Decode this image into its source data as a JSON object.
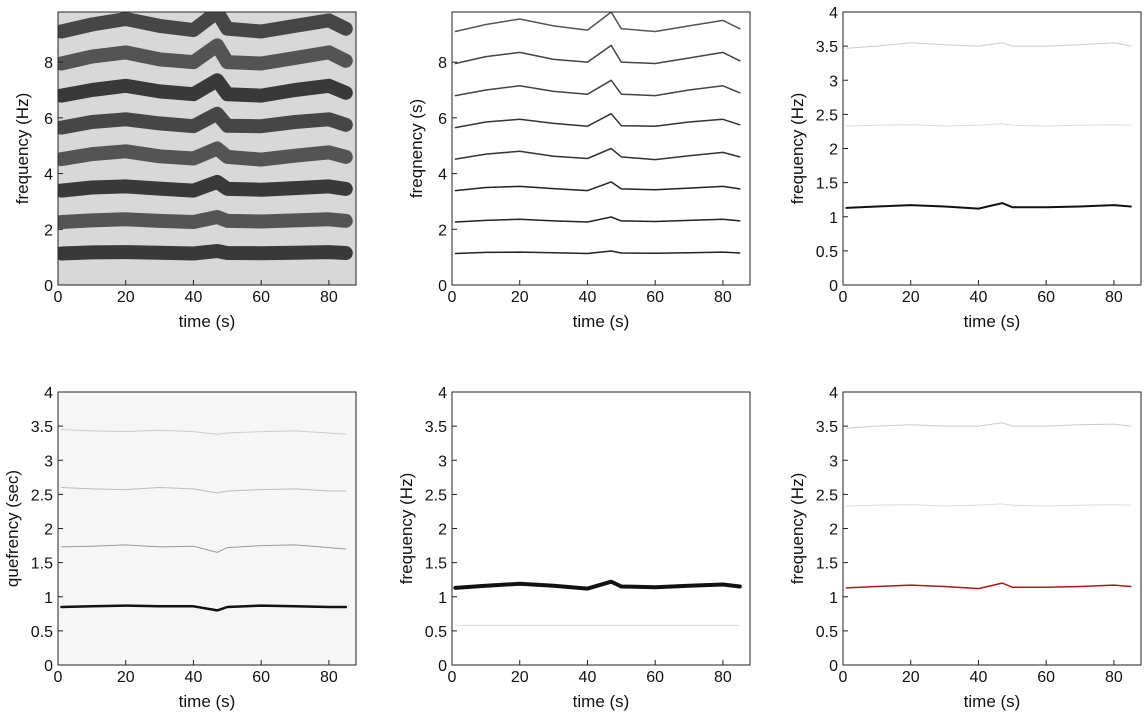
{
  "chart_data": [
    {
      "type": "line",
      "xlabel": "time (s)",
      "ylabel": "frequency (Hz)",
      "xlim": [
        0,
        88
      ],
      "ylim": [
        0,
        9.8
      ],
      "xticks": [
        0,
        20,
        40,
        60,
        80
      ],
      "yticks": [
        0,
        2,
        4,
        6,
        8
      ],
      "background": "#d8d8d8",
      "x": [
        1,
        10,
        20,
        30,
        40,
        47,
        50,
        60,
        70,
        80,
        85
      ],
      "series": [
        {
          "color": "#111",
          "line_width": 14,
          "values": [
            1.13,
            1.17,
            1.18,
            1.16,
            1.13,
            1.22,
            1.15,
            1.14,
            1.16,
            1.18,
            1.15
          ]
        },
        {
          "color": "#333",
          "line_width": 14,
          "values": [
            2.26,
            2.32,
            2.36,
            2.3,
            2.26,
            2.44,
            2.3,
            2.28,
            2.32,
            2.36,
            2.3
          ]
        },
        {
          "color": "#111",
          "line_width": 14,
          "values": [
            3.39,
            3.5,
            3.54,
            3.46,
            3.39,
            3.7,
            3.45,
            3.42,
            3.48,
            3.54,
            3.45
          ]
        },
        {
          "color": "#333",
          "line_width": 14,
          "values": [
            4.52,
            4.7,
            4.8,
            4.62,
            4.54,
            4.9,
            4.6,
            4.5,
            4.64,
            4.76,
            4.6
          ]
        },
        {
          "color": "#222",
          "line_width": 14,
          "values": [
            5.65,
            5.85,
            5.95,
            5.8,
            5.7,
            6.15,
            5.72,
            5.7,
            5.85,
            5.95,
            5.75
          ]
        },
        {
          "color": "#111",
          "line_width": 14,
          "values": [
            6.8,
            7.0,
            7.15,
            6.95,
            6.85,
            7.35,
            6.85,
            6.8,
            7.0,
            7.15,
            6.9
          ]
        },
        {
          "color": "#333",
          "line_width": 14,
          "values": [
            7.95,
            8.2,
            8.35,
            8.1,
            8.0,
            8.6,
            8.0,
            7.95,
            8.15,
            8.35,
            8.05
          ]
        },
        {
          "color": "#222",
          "line_width": 14,
          "values": [
            9.1,
            9.35,
            9.55,
            9.3,
            9.15,
            9.8,
            9.2,
            9.1,
            9.3,
            9.5,
            9.2
          ]
        }
      ]
    },
    {
      "type": "line",
      "xlabel": "time (s)",
      "ylabel": "freqnency (s)",
      "xlim": [
        0,
        88
      ],
      "ylim": [
        0,
        9.8
      ],
      "xticks": [
        0,
        20,
        40,
        60,
        80
      ],
      "yticks": [
        0,
        2,
        4,
        6,
        8
      ],
      "background": "#ffffff",
      "x": [
        1,
        10,
        20,
        30,
        40,
        47,
        50,
        60,
        70,
        80,
        85
      ],
      "series": [
        {
          "color": "#222",
          "line_width": 1.5,
          "values": [
            1.13,
            1.17,
            1.18,
            1.16,
            1.13,
            1.22,
            1.15,
            1.14,
            1.16,
            1.18,
            1.15
          ]
        },
        {
          "color": "#222",
          "line_width": 1.5,
          "values": [
            2.26,
            2.32,
            2.36,
            2.3,
            2.26,
            2.44,
            2.3,
            2.28,
            2.32,
            2.36,
            2.3
          ]
        },
        {
          "color": "#222",
          "line_width": 1.5,
          "values": [
            3.39,
            3.5,
            3.54,
            3.46,
            3.39,
            3.7,
            3.45,
            3.42,
            3.48,
            3.54,
            3.45
          ]
        },
        {
          "color": "#333",
          "line_width": 1.5,
          "values": [
            4.52,
            4.7,
            4.8,
            4.62,
            4.54,
            4.9,
            4.6,
            4.5,
            4.64,
            4.76,
            4.6
          ]
        },
        {
          "color": "#333",
          "line_width": 1.5,
          "values": [
            5.65,
            5.85,
            5.95,
            5.8,
            5.7,
            6.15,
            5.72,
            5.7,
            5.85,
            5.95,
            5.75
          ]
        },
        {
          "color": "#444",
          "line_width": 1.5,
          "values": [
            6.8,
            7.0,
            7.15,
            6.95,
            6.85,
            7.35,
            6.85,
            6.8,
            7.0,
            7.15,
            6.9
          ]
        },
        {
          "color": "#444",
          "line_width": 1.5,
          "values": [
            7.95,
            8.2,
            8.35,
            8.1,
            8.0,
            8.6,
            8.0,
            7.95,
            8.15,
            8.35,
            8.05
          ]
        },
        {
          "color": "#555",
          "line_width": 1.5,
          "values": [
            9.1,
            9.35,
            9.55,
            9.3,
            9.15,
            9.8,
            9.2,
            9.1,
            9.3,
            9.5,
            9.2
          ]
        }
      ]
    },
    {
      "type": "line",
      "xlabel": "time (s)",
      "ylabel": "frequency (Hz)",
      "xlim": [
        0,
        88
      ],
      "ylim": [
        0,
        4
      ],
      "xticks": [
        0,
        20,
        40,
        60,
        80
      ],
      "yticks": [
        0,
        0.5,
        1,
        1.5,
        2,
        2.5,
        3,
        3.5,
        4
      ],
      "background": "#ffffff",
      "x": [
        1,
        10,
        20,
        30,
        40,
        47,
        50,
        60,
        70,
        80,
        85
      ],
      "series": [
        {
          "color": "#111",
          "line_width": 2,
          "values": [
            1.13,
            1.15,
            1.17,
            1.15,
            1.12,
            1.2,
            1.14,
            1.14,
            1.15,
            1.17,
            1.15
          ]
        },
        {
          "color": "#ddd",
          "line_width": 1,
          "values": [
            2.33,
            2.34,
            2.35,
            2.33,
            2.34,
            2.36,
            2.34,
            2.33,
            2.34,
            2.35,
            2.34
          ]
        },
        {
          "color": "#ccc",
          "line_width": 1,
          "values": [
            3.47,
            3.5,
            3.55,
            3.52,
            3.5,
            3.55,
            3.5,
            3.5,
            3.52,
            3.55,
            3.5
          ]
        }
      ]
    },
    {
      "type": "line",
      "xlabel": "time (s)",
      "ylabel": "quefrency (sec)",
      "xlim": [
        0,
        88
      ],
      "ylim": [
        0,
        4
      ],
      "xticks": [
        0,
        20,
        40,
        60,
        80
      ],
      "yticks": [
        0,
        0.5,
        1,
        1.5,
        2,
        2.5,
        3,
        3.5,
        4
      ],
      "background": "#f6f6f6",
      "x": [
        1,
        10,
        20,
        30,
        40,
        47,
        50,
        60,
        70,
        80,
        85
      ],
      "series": [
        {
          "color": "#111",
          "line_width": 2.5,
          "values": [
            0.85,
            0.86,
            0.87,
            0.86,
            0.86,
            0.8,
            0.85,
            0.87,
            0.86,
            0.85,
            0.85
          ]
        },
        {
          "color": "#999",
          "line_width": 1,
          "values": [
            1.73,
            1.74,
            1.76,
            1.73,
            1.74,
            1.65,
            1.72,
            1.75,
            1.76,
            1.72,
            1.7
          ]
        },
        {
          "color": "#bbb",
          "line_width": 1,
          "values": [
            2.6,
            2.58,
            2.57,
            2.6,
            2.58,
            2.52,
            2.55,
            2.57,
            2.58,
            2.55,
            2.55
          ]
        },
        {
          "color": "#ccc",
          "line_width": 1,
          "values": [
            3.45,
            3.43,
            3.42,
            3.44,
            3.42,
            3.38,
            3.4,
            3.42,
            3.43,
            3.4,
            3.38
          ]
        }
      ]
    },
    {
      "type": "line",
      "xlabel": "time (s)",
      "ylabel": "frequency (Hz)",
      "xlim": [
        0,
        88
      ],
      "ylim": [
        0,
        4
      ],
      "xticks": [
        0,
        20,
        40,
        60,
        80
      ],
      "yticks": [
        0,
        0.5,
        1,
        1.5,
        2,
        2.5,
        3,
        3.5,
        4
      ],
      "background": "#ffffff",
      "x": [
        1,
        10,
        20,
        30,
        40,
        47,
        50,
        60,
        70,
        80,
        85
      ],
      "series": [
        {
          "color": "#111",
          "line_width": 4,
          "values": [
            1.13,
            1.16,
            1.19,
            1.16,
            1.12,
            1.22,
            1.15,
            1.14,
            1.16,
            1.18,
            1.15
          ]
        },
        {
          "color": "#ddd",
          "line_width": 1,
          "values": [
            0.58,
            0.58,
            0.58,
            0.58,
            0.58,
            0.58,
            0.58,
            0.58,
            0.58,
            0.58,
            0.58
          ]
        }
      ]
    },
    {
      "type": "line",
      "xlabel": "time (s)",
      "ylabel": "frequency (Hz)",
      "xlim": [
        0,
        88
      ],
      "ylim": [
        0,
        4
      ],
      "xticks": [
        0,
        20,
        40,
        60,
        80
      ],
      "yticks": [
        0,
        0.5,
        1,
        1.5,
        2,
        2.5,
        3,
        3.5,
        4
      ],
      "background": "#ffffff",
      "x": [
        1,
        10,
        20,
        30,
        40,
        47,
        50,
        60,
        70,
        80,
        85
      ],
      "series": [
        {
          "color": "#b01818",
          "line_width": 1.5,
          "values": [
            1.13,
            1.15,
            1.17,
            1.15,
            1.12,
            1.2,
            1.14,
            1.14,
            1.15,
            1.17,
            1.15
          ]
        },
        {
          "color": "#ddd",
          "line_width": 1,
          "values": [
            2.33,
            2.34,
            2.35,
            2.33,
            2.34,
            2.36,
            2.34,
            2.33,
            2.34,
            2.35,
            2.34
          ]
        },
        {
          "color": "#ccc",
          "line_width": 1,
          "values": [
            3.47,
            3.5,
            3.52,
            3.5,
            3.5,
            3.55,
            3.5,
            3.5,
            3.52,
            3.53,
            3.5
          ]
        }
      ]
    }
  ]
}
